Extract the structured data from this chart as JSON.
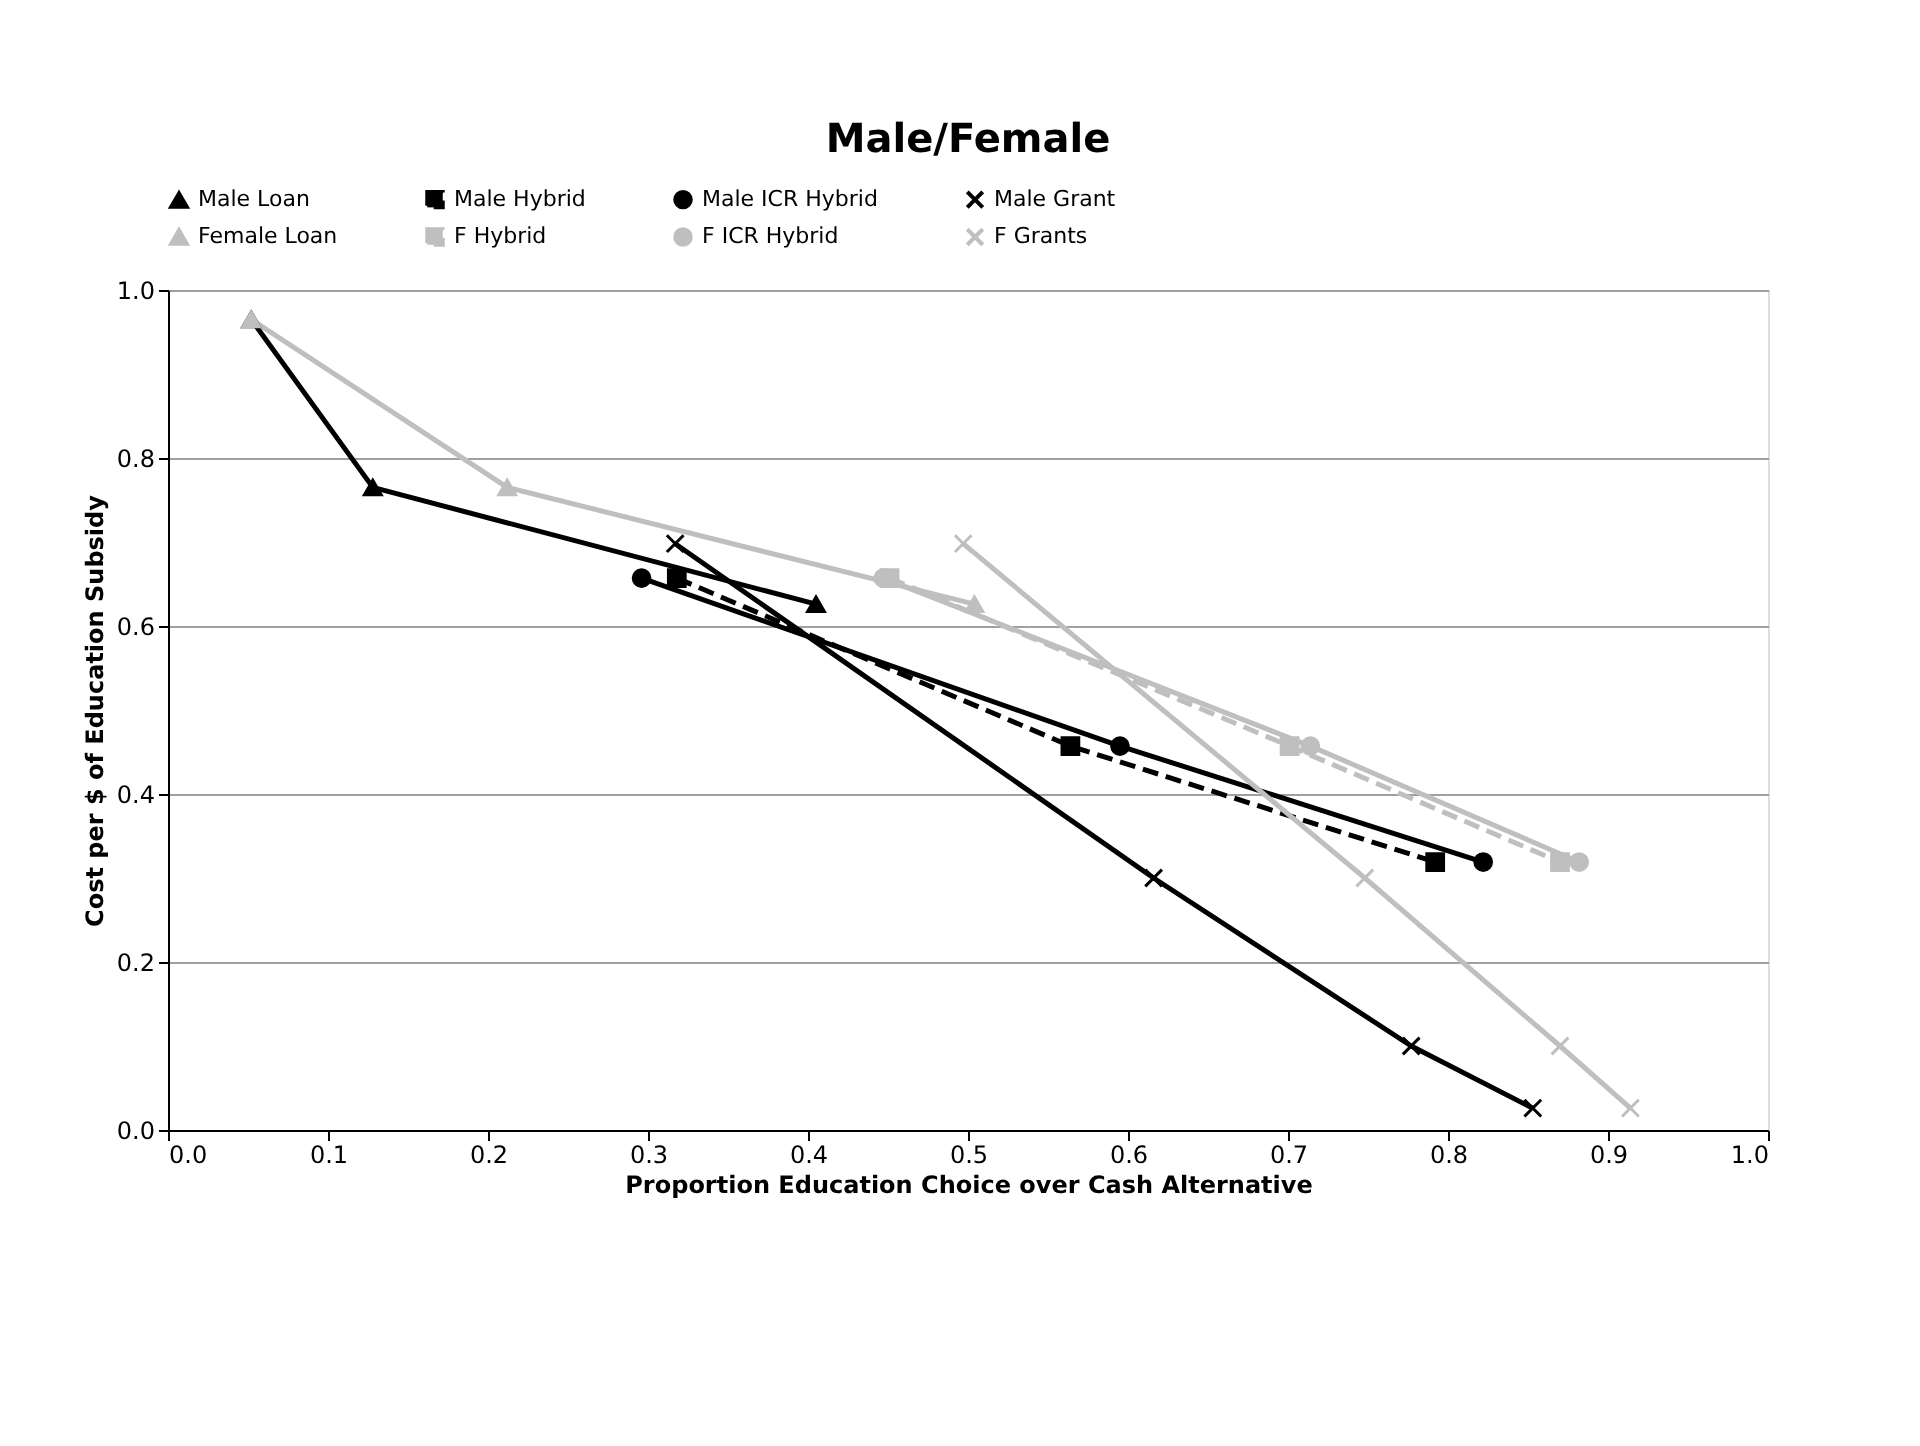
{
  "chart_data": {
    "type": "line",
    "title": "Male/Female",
    "xlabel": "Proportion Education Choice over Cash Alternative",
    "ylabel": "Cost per $ of Education Subsidy",
    "xlim": [
      0.0,
      1.0
    ],
    "xticks": [
      {
        "value": 0,
        "label": "0.0"
      },
      0.1,
      0.2,
      0.3,
      0.4,
      0.5,
      0.6,
      0.7,
      0.8,
      0.9,
      {
        "value": 1,
        "label": "1.0"
      }
    ],
    "ylim": [
      0.0,
      1.0
    ],
    "yticks": [
      {
        "value": 0,
        "label": "0.0"
      },
      0.2,
      0.4,
      0.6,
      0.8,
      {
        "value": 1,
        "label": "1.0"
      }
    ],
    "grid": "y",
    "legend": "top",
    "series": [
      {
        "name": "Male Loan",
        "color": "#000000",
        "marker": "triangle",
        "line_style": "solid",
        "x": [
          0.052,
          0.128,
          0.405
        ],
        "values": [
          0.965,
          0.765,
          0.626
        ]
      },
      {
        "name": "Male Hybrid",
        "color": "#000000",
        "marker": "square",
        "line_style": "dashed",
        "x": [
          0.318,
          0.564,
          0.792
        ],
        "values": [
          0.657,
          0.457,
          0.319
        ]
      },
      {
        "name": "Male ICR Hybrid",
        "color": "#000000",
        "marker": "circle",
        "line_style": "solid",
        "x": [
          0.296,
          0.595,
          0.822
        ],
        "values": [
          0.657,
          0.457,
          0.319
        ]
      },
      {
        "name": "Male Grant",
        "color": "#000000",
        "marker": "cross",
        "line_style": "solid",
        "x": [
          0.317,
          0.616,
          0.777,
          0.853
        ],
        "values": [
          0.698,
          0.3,
          0.1,
          0.026
        ]
      },
      {
        "name": "Female Loan",
        "color": "#bfbfbf",
        "marker": "triangle",
        "line_style": "solid",
        "x": [
          0.052,
          0.212,
          0.504
        ],
        "values": [
          0.965,
          0.765,
          0.626
        ]
      },
      {
        "name": "F Hybrid",
        "color": "#bfbfbf",
        "marker": "square",
        "line_style": "dashed",
        "x": [
          0.451,
          0.701,
          0.87
        ],
        "values": [
          0.657,
          0.457,
          0.319
        ]
      },
      {
        "name": "F ICR Hybrid",
        "color": "#bfbfbf",
        "marker": "circle",
        "line_style": "solid",
        "x": [
          0.447,
          0.714,
          0.882
        ],
        "values": [
          0.657,
          0.457,
          0.319
        ]
      },
      {
        "name": "F Grants",
        "color": "#bfbfbf",
        "marker": "cross",
        "line_style": "solid",
        "x": [
          0.497,
          0.748,
          0.87,
          0.914
        ],
        "values": [
          0.698,
          0.3,
          0.1,
          0.026
        ]
      }
    ]
  }
}
